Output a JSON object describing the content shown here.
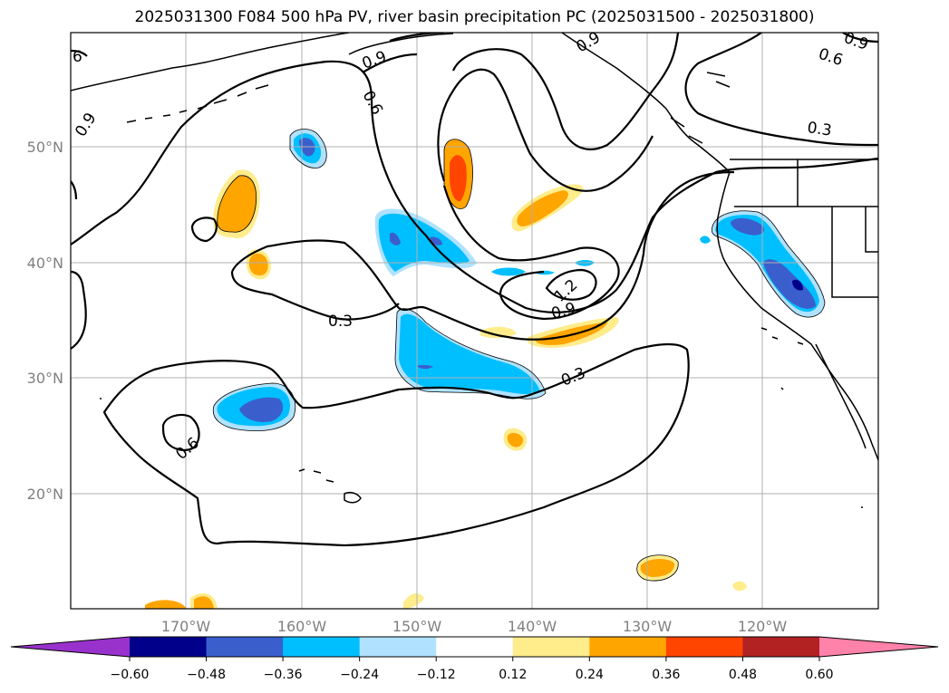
{
  "title": "2025031300 F084 500 hPa PV, river basin precipitation PC (2025031500 - 2025031800)",
  "map": {
    "lat_ticks": [
      "50°N",
      "40°N",
      "30°N",
      "20°N"
    ],
    "lon_ticks": [
      "170°W",
      "160°W",
      "150°W",
      "140°W",
      "130°W",
      "120°W"
    ],
    "gridlines": true,
    "contour_labels": [
      "0.3",
      "0.3",
      "0.3",
      "0.6",
      "0.6",
      "0.6",
      "0.9",
      "0.9",
      "1.2"
    ],
    "edge_labels": [
      "6",
      "0.9",
      "0.9",
      "0.9",
      "0.6"
    ]
  },
  "colorbar": {
    "tick_labels": [
      "−0.60",
      "−0.48",
      "−0.36",
      "−0.24",
      "−0.12",
      "0.12",
      "0.24",
      "0.36",
      "0.48",
      "0.60"
    ],
    "colors": [
      "#9932CC",
      "#00008B",
      "#3A5FCD",
      "#00BFFF",
      "#B0E2FF",
      "#FFFFFF",
      "#FFEC8B",
      "#FFA500",
      "#FF4500",
      "#B22222",
      "#FF82AB"
    ],
    "extend": "both"
  },
  "colors": {
    "positive_1": "#FFEC8B",
    "positive_2": "#FFA500",
    "positive_3": "#FF4500",
    "negative_1": "#B0E2FF",
    "negative_2": "#00BFFF",
    "negative_3": "#3A5FCD",
    "negative_4": "#00008B",
    "grid": "#b0b0b0",
    "contour": "#000000"
  }
}
